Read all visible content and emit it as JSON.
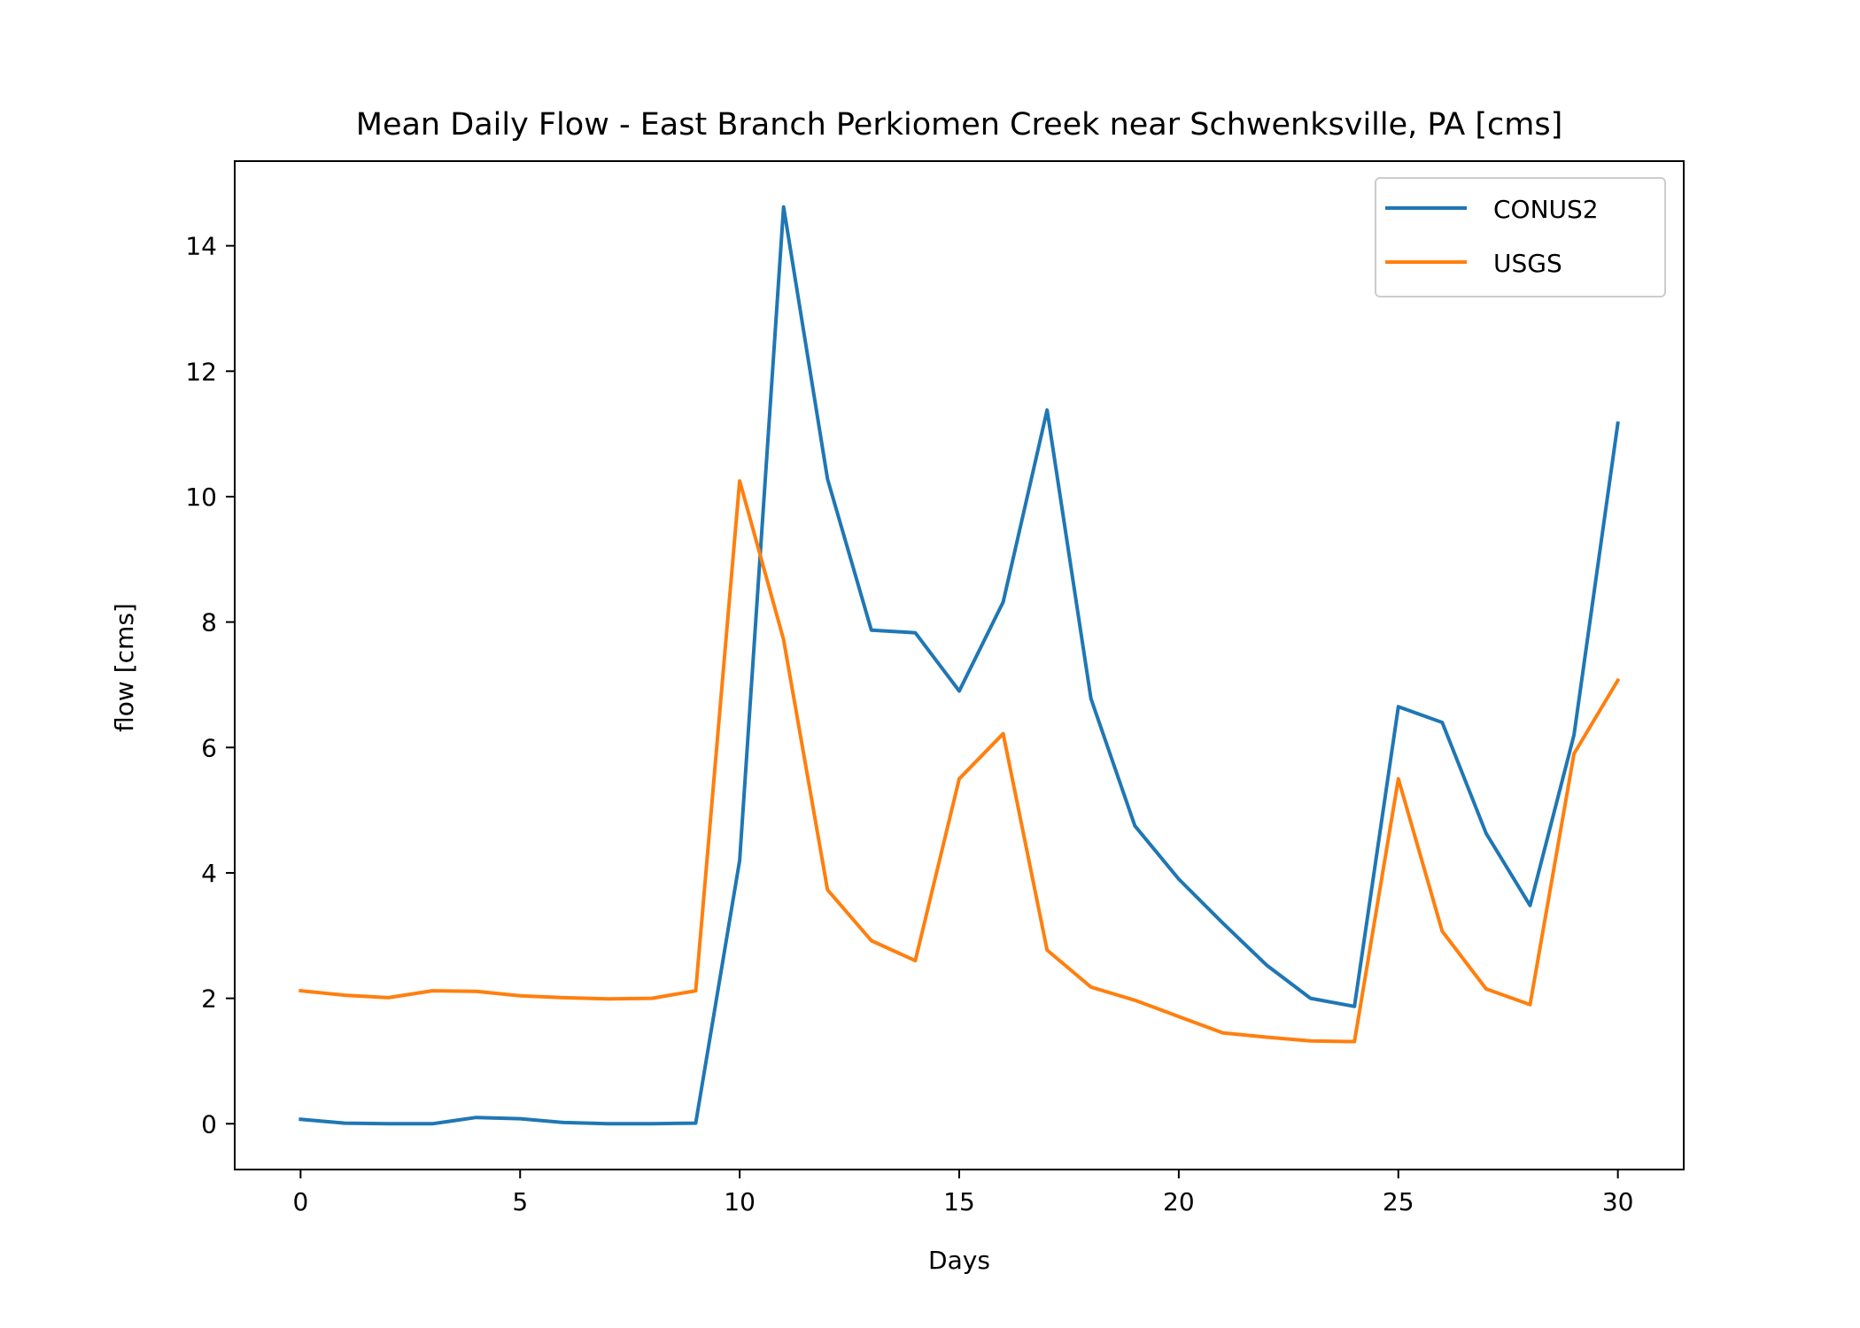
{
  "chart_data": {
    "type": "line",
    "title": "Mean Daily Flow - East Branch Perkiomen Creek near Schwenksville, PA [cms]",
    "xlabel": "Days",
    "ylabel": "flow [cms]",
    "xlim": [
      -1.5,
      31.5
    ],
    "ylim": [
      -0.73,
      15.35
    ],
    "xticks": [
      0,
      5,
      10,
      15,
      20,
      25,
      30
    ],
    "yticks": [
      0,
      2,
      4,
      6,
      8,
      10,
      12,
      14
    ],
    "grid": false,
    "legend_position": "top-right",
    "x": [
      0,
      1,
      2,
      3,
      4,
      5,
      6,
      7,
      8,
      9,
      10,
      11,
      12,
      13,
      14,
      15,
      16,
      17,
      18,
      19,
      20,
      21,
      22,
      23,
      24,
      25,
      26,
      27,
      28,
      29,
      30
    ],
    "series": [
      {
        "name": "CONUS2",
        "color": "#1f77b4",
        "values": [
          0.07,
          0.01,
          0.0,
          0.0,
          0.1,
          0.08,
          0.02,
          0.0,
          0.0,
          0.01,
          4.2,
          14.62,
          10.28,
          7.87,
          7.83,
          6.9,
          8.32,
          11.38,
          6.78,
          4.75,
          3.9,
          3.2,
          2.53,
          2.0,
          1.87,
          6.65,
          6.4,
          4.63,
          3.48,
          6.2,
          11.17
        ]
      },
      {
        "name": "USGS",
        "color": "#ff7f0e",
        "values": [
          2.12,
          2.05,
          2.01,
          2.12,
          2.11,
          2.04,
          2.01,
          1.99,
          2.0,
          2.12,
          10.25,
          7.72,
          3.73,
          2.92,
          2.6,
          5.5,
          6.22,
          2.77,
          2.18,
          1.97,
          1.71,
          1.45,
          1.38,
          1.32,
          1.31,
          5.5,
          3.07,
          2.15,
          1.9,
          5.9,
          7.07
        ]
      }
    ]
  }
}
